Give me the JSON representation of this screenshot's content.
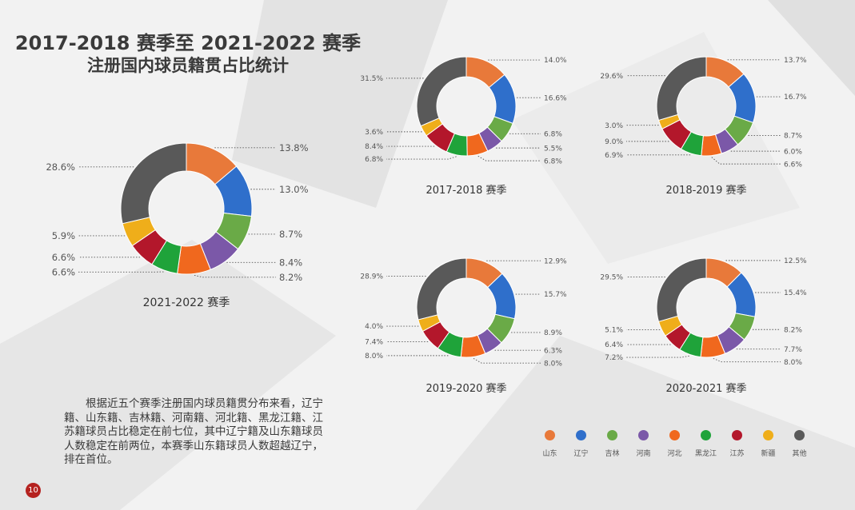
{
  "header": {
    "title_line1": "2017-2018 赛季至 2021-2022 赛季",
    "title_line2": "注册国内球员籍贯占比统计"
  },
  "description": "根据近五个赛季注册国内球员籍贯分布来看，辽宁籍、山东籍、吉林籍、河南籍、河北籍、黑龙江籍、江苏籍球员占比稳定在前七位，其中辽宁籍及山东籍球员人数稳定在前两位，本赛季山东籍球员人数超越辽宁，排在首位。",
  "page_number": "10",
  "colors": {
    "山东": "#e8793a",
    "辽宁": "#2f6fcb",
    "吉林": "#6aaa47",
    "河南": "#7b58a8",
    "河北": "#f0681e",
    "黑龙江": "#1fa33a",
    "江苏": "#b3172b",
    "新疆": "#efae1a",
    "其他": "#595959"
  },
  "legend": [
    "山东",
    "辽宁",
    "吉林",
    "河南",
    "河北",
    "黑龙江",
    "江苏",
    "新疆",
    "其他"
  ],
  "chart_data": [
    {
      "type": "pie",
      "title": "2021-2022 赛季",
      "categories": [
        "山东",
        "辽宁",
        "吉林",
        "河南",
        "河北",
        "黑龙江",
        "江苏",
        "新疆",
        "其他"
      ],
      "values": [
        13.8,
        13.0,
        8.7,
        8.4,
        8.2,
        6.6,
        6.6,
        5.9,
        28.6
      ],
      "labels": [
        "13.8%",
        "13.0%",
        "8.7%",
        "8.4%",
        "8.2%",
        "6.6%",
        "6.6%",
        "5.9%",
        "28.6%"
      ]
    },
    {
      "type": "pie",
      "title": "2017-2018 赛季",
      "categories": [
        "山东",
        "辽宁",
        "吉林",
        "河南",
        "河北",
        "黑龙江",
        "江苏",
        "新疆",
        "其他"
      ],
      "values": [
        14.0,
        16.6,
        6.8,
        5.5,
        6.8,
        6.8,
        8.4,
        3.6,
        31.5
      ],
      "labels": [
        "14.0%",
        "16.6%",
        "6.8%",
        "5.5%",
        "6.8%",
        "6.8%",
        "8.4%",
        "3.6%",
        "31.5%"
      ]
    },
    {
      "type": "pie",
      "title": "2018-2019 赛季",
      "categories": [
        "山东",
        "辽宁",
        "吉林",
        "河南",
        "河北",
        "黑龙江",
        "江苏",
        "新疆",
        "其他"
      ],
      "values": [
        13.7,
        16.7,
        8.7,
        6.0,
        6.6,
        6.9,
        9.0,
        3.0,
        29.6
      ],
      "labels": [
        "13.7%",
        "16.7%",
        "8.7%",
        "6.0%",
        "6.6%",
        "6.9%",
        "9.0%",
        "3.0%",
        "29.6%"
      ]
    },
    {
      "type": "pie",
      "title": "2019-2020 赛季",
      "categories": [
        "山东",
        "辽宁",
        "吉林",
        "河南",
        "河北",
        "黑龙江",
        "江苏",
        "新疆",
        "其他"
      ],
      "values": [
        12.9,
        15.7,
        8.9,
        6.3,
        8.0,
        8.0,
        7.4,
        4.0,
        28.9
      ],
      "labels": [
        "12.9%",
        "15.7%",
        "8.9%",
        "6.3%",
        "8.0%",
        "8.0%",
        "7.4%",
        "4.0%",
        "28.9%"
      ]
    },
    {
      "type": "pie",
      "title": "2020-2021 赛季",
      "categories": [
        "山东",
        "辽宁",
        "吉林",
        "河南",
        "河北",
        "黑龙江",
        "江苏",
        "新疆",
        "其他"
      ],
      "values": [
        12.5,
        15.4,
        8.2,
        7.7,
        8.0,
        7.2,
        6.4,
        5.1,
        29.5
      ],
      "labels": [
        "12.5%",
        "15.4%",
        "8.2%",
        "7.7%",
        "8.0%",
        "7.2%",
        "6.4%",
        "5.1%",
        "29.5%"
      ]
    }
  ]
}
